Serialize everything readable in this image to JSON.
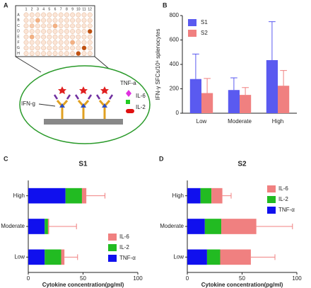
{
  "diagram": {
    "label": "A",
    "rows": [
      "A",
      "B",
      "C",
      "D",
      "E",
      "F",
      "G",
      "H"
    ],
    "columns": [
      "1",
      "2",
      "3",
      "4",
      "5",
      "6",
      "7",
      "8",
      "9",
      "10",
      "11",
      "12"
    ],
    "labels": [
      "TNF-a",
      "IL-6",
      "IL-2",
      "IFN-g"
    ]
  },
  "chart_data": [
    {
      "type": "bar",
      "label": "B",
      "ylabel": "IFN-γ SFCs/10⁶ splenocytes",
      "categories": [
        "Low",
        "Moderate",
        "High"
      ],
      "series": [
        {
          "name": "S1",
          "color": "#5a5af0",
          "values": [
            280,
            190,
            435
          ],
          "errors": [
            205,
            100,
            315
          ]
        },
        {
          "name": "S2",
          "color": "#f08080",
          "values": [
            165,
            150,
            225
          ],
          "errors": [
            120,
            60,
            125
          ]
        }
      ],
      "ylim": [
        0,
        800
      ],
      "yticks": [
        0,
        200,
        400,
        600,
        800
      ],
      "legend": "upper-left"
    },
    {
      "type": "stacked-hbar",
      "label": "C",
      "title": "S1",
      "xlabel": "Cytokine concentration(pg/ml)",
      "categories": [
        "Low",
        "Moderate",
        "High"
      ],
      "series": [
        {
          "name": "TNF-α",
          "color": "#1010ee",
          "values": [
            15,
            15,
            34
          ]
        },
        {
          "name": "IL-2",
          "color": "#22bb22",
          "values": [
            15,
            3,
            15
          ]
        },
        {
          "name": "IL-6",
          "color": "#f08080",
          "values": [
            3,
            1,
            4
          ],
          "errors": [
            12,
            25,
            17
          ]
        }
      ],
      "xlim": [
        0,
        100
      ],
      "xticks": [
        0,
        50,
        100
      ],
      "legend": "lower-right"
    },
    {
      "type": "stacked-hbar",
      "label": "D",
      "title": "S2",
      "xlabel": "Cytokine concentration(pg/ml)",
      "categories": [
        "Low",
        "Moderate",
        "High"
      ],
      "series": [
        {
          "name": "TNF-α",
          "color": "#1010ee",
          "values": [
            18,
            16,
            12
          ]
        },
        {
          "name": "IL-2",
          "color": "#22bb22",
          "values": [
            12,
            15,
            10
          ]
        },
        {
          "name": "IL-6",
          "color": "#f08080",
          "values": [
            28,
            32,
            10
          ],
          "errors": [
            22,
            33,
            8
          ]
        }
      ],
      "xlim": [
        0,
        100
      ],
      "xticks": [
        0,
        50,
        100
      ],
      "legend": "upper-right"
    }
  ]
}
